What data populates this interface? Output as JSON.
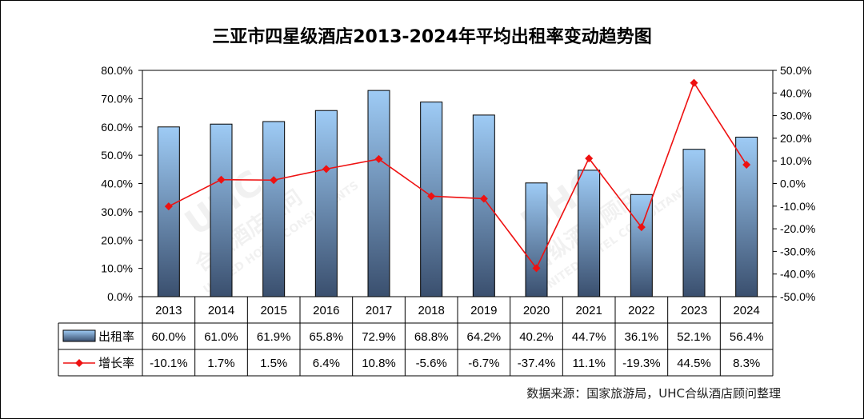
{
  "chart_data": {
    "type": "bar+line",
    "title": "三亚市四星级酒店2013-2024年平均出租率变动趋势图",
    "categories": [
      "2013",
      "2014",
      "2015",
      "2016",
      "2017",
      "2018",
      "2019",
      "2020",
      "2021",
      "2022",
      "2023",
      "2024"
    ],
    "series": [
      {
        "name": "出租率",
        "type": "bar",
        "axis": "left",
        "values": [
          60.0,
          61.0,
          61.9,
          65.8,
          72.9,
          68.8,
          64.2,
          40.2,
          44.7,
          36.1,
          52.1,
          56.4
        ],
        "labels": [
          "60.0%",
          "61.0%",
          "61.9%",
          "65.8%",
          "72.9%",
          "68.8%",
          "64.2%",
          "40.2%",
          "44.7%",
          "36.1%",
          "52.1%",
          "56.4%"
        ]
      },
      {
        "name": "增长率",
        "type": "line",
        "axis": "right",
        "values": [
          -10.1,
          1.7,
          1.5,
          6.4,
          10.8,
          -5.6,
          -6.7,
          -37.4,
          11.1,
          -19.3,
          44.5,
          8.3
        ],
        "labels": [
          "-10.1%",
          "1.7%",
          "1.5%",
          "6.4%",
          "10.8%",
          "-5.6%",
          "-6.7%",
          "-37.4%",
          "11.1%",
          "-19.3%",
          "44.5%",
          "8.3%"
        ]
      }
    ],
    "y_left": {
      "lim": [
        0,
        80
      ],
      "ticks": [
        "0.0%",
        "10.0%",
        "20.0%",
        "30.0%",
        "40.0%",
        "50.0%",
        "60.0%",
        "70.0%",
        "80.0%"
      ]
    },
    "y_right": {
      "lim": [
        -50,
        50
      ],
      "ticks": [
        "-50.0%",
        "-40.0%",
        "-30.0%",
        "-20.0%",
        "-10.0%",
        "0.0%",
        "10.0%",
        "20.0%",
        "30.0%",
        "40.0%",
        "50.0%"
      ]
    },
    "legend_placement": "data-table",
    "colors": {
      "bar_top": "#9ecbf5",
      "bar_bottom": "#3a4f6e",
      "line": "#ee1111"
    }
  },
  "source": "数据来源：国家旅游局，UHC合纵酒店顾问整理",
  "watermark": {
    "text": "UHC",
    "chinese": "合纵酒店顾问",
    "english": "UNITED HOTEL CONSULTANTS"
  }
}
